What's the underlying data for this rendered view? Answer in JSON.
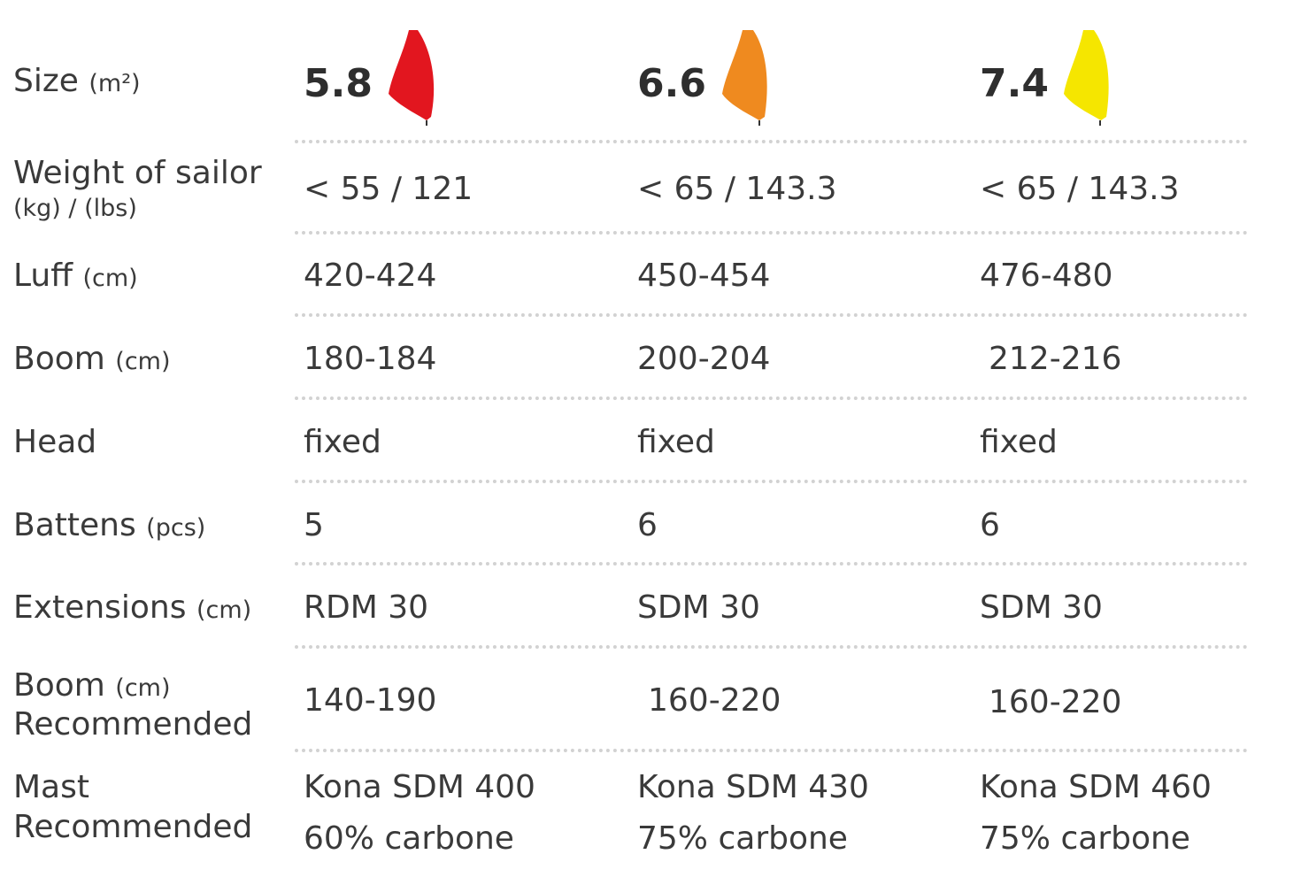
{
  "rows": {
    "size": {
      "label": "Size",
      "unit": "(m²)",
      "values": [
        "5.8",
        "6.6",
        "7.4"
      ]
    },
    "weight": {
      "label": "Weight of sailor",
      "unit": "(kg) / (lbs)",
      "values": [
        "< 55 / 121",
        "< 65 / 143.3",
        "< 65 / 143.3"
      ]
    },
    "luff": {
      "label": "Luff",
      "unit": "(cm)",
      "values": [
        "420-424",
        "450-454",
        "476-480"
      ]
    },
    "boom": {
      "label": "Boom",
      "unit": "(cm)",
      "values": [
        "180-184",
        "200-204",
        "212-216"
      ]
    },
    "head": {
      "label": "Head",
      "values": [
        "fixed",
        "fixed",
        "fixed"
      ]
    },
    "battens": {
      "label": "Battens",
      "unit": "(pcs)",
      "values": [
        "5",
        "6",
        "6"
      ]
    },
    "extensions": {
      "label": "Extensions",
      "unit": "(cm)",
      "values": [
        "RDM 30",
        "SDM 30",
        "SDM 30"
      ]
    },
    "boom_rec": {
      "label": "Boom",
      "unit": "(cm)",
      "label2": "Recommended",
      "values": [
        "140-190",
        "160-220",
        "160-220"
      ]
    },
    "mast_rec": {
      "label": "Mast",
      "label2": "Recommended",
      "values": [
        "Kona SDM 400",
        "Kona SDM 430",
        "Kona SDM 460"
      ],
      "values2": [
        "60% carbone",
        "75% carbone",
        "75% carbone"
      ]
    }
  },
  "sail_colors": [
    "#e2161f",
    "#ef8a1f",
    "#f5e600"
  ]
}
